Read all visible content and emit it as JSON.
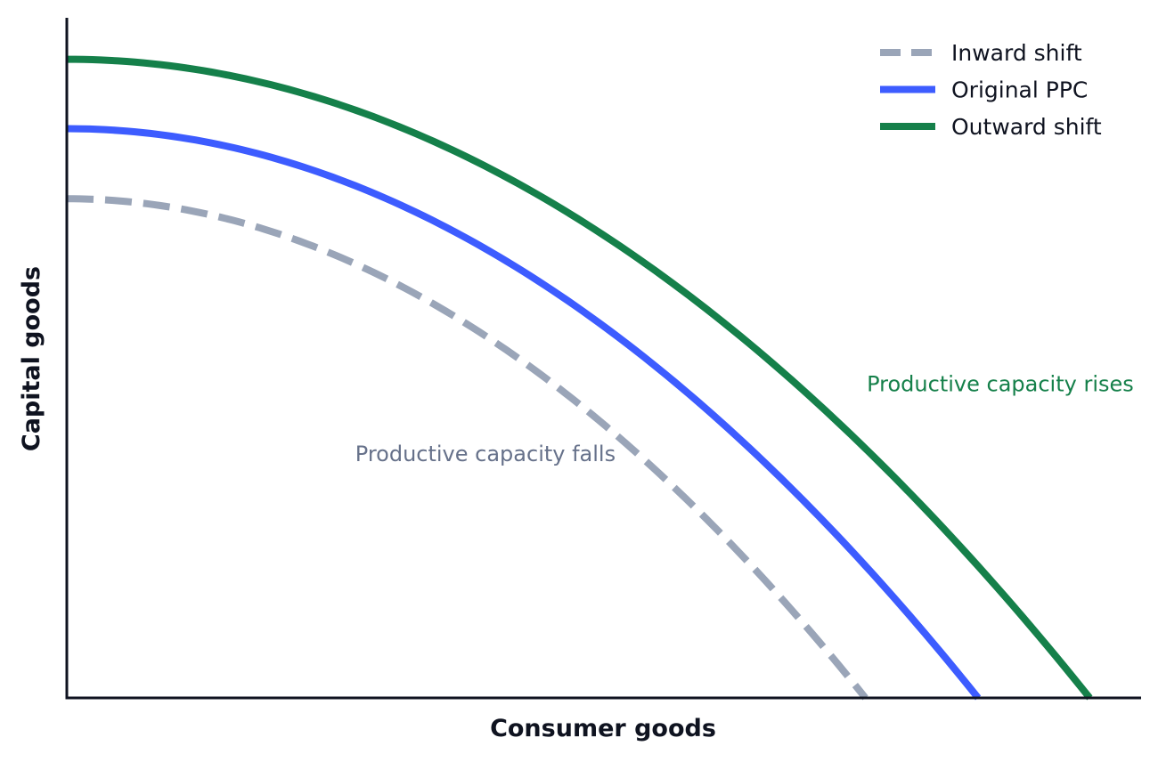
{
  "chart_data": {
    "type": "line",
    "xlabel": "Consumer goods",
    "ylabel": "Capital goods",
    "xlim": [
      0,
      10
    ],
    "ylim": [
      0,
      10
    ],
    "grid": false,
    "legend_position": "top-right",
    "curve_shape": "concave quadratic frontier: y = ymax * (1 - (x/xmax)^2)",
    "series": [
      {
        "name": "Inward shift",
        "color": "#9aa5b8",
        "style": "dashed",
        "x_max": 7.44,
        "y_max": 7.34
      },
      {
        "name": "Original PPC",
        "color": "#3d5cff",
        "style": "solid",
        "x_max": 8.49,
        "y_max": 8.37
      },
      {
        "name": "Outward shift",
        "color": "#15804a",
        "style": "solid",
        "x_max": 9.53,
        "y_max": 9.39
      }
    ],
    "annotations": [
      {
        "text": "Productive capacity falls",
        "color": "#66718a",
        "x": 3.9,
        "y": 3.48,
        "anchor": "middle"
      },
      {
        "text": "Productive capacity rises",
        "color": "#15804a",
        "x": 9.94,
        "y": 4.51,
        "anchor": "end"
      }
    ]
  }
}
